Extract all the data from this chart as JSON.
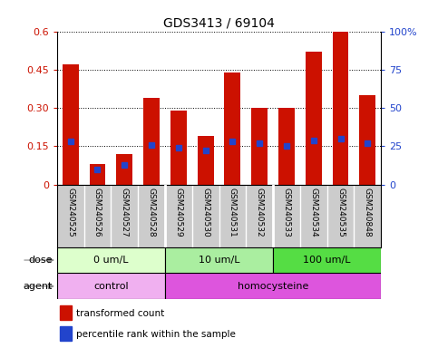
{
  "title": "GDS3413 / 69104",
  "samples": [
    "GSM240525",
    "GSM240526",
    "GSM240527",
    "GSM240528",
    "GSM240529",
    "GSM240530",
    "GSM240531",
    "GSM240532",
    "GSM240533",
    "GSM240534",
    "GSM240535",
    "GSM240848"
  ],
  "red_values": [
    0.47,
    0.08,
    0.12,
    0.34,
    0.29,
    0.19,
    0.44,
    0.3,
    0.3,
    0.52,
    0.6,
    0.35
  ],
  "blue_percentiles": [
    28,
    10,
    13,
    26,
    24,
    22,
    28,
    27,
    25,
    29,
    30,
    27
  ],
  "ylim_left": [
    0,
    0.6
  ],
  "ylim_right": [
    0,
    100
  ],
  "yticks_left": [
    0,
    0.15,
    0.3,
    0.45,
    0.6
  ],
  "ytick_labels_left": [
    "0",
    "0.15",
    "0.30",
    "0.45",
    "0.6"
  ],
  "yticks_right": [
    0,
    25,
    50,
    75,
    100
  ],
  "ytick_labels_right": [
    "0",
    "25",
    "50",
    "75",
    "100%"
  ],
  "bar_color": "#cc1100",
  "marker_color": "#2244cc",
  "names_bg_color": "#cccccc",
  "dose_colors": [
    "#ddffcc",
    "#aaeea0",
    "#55dd44"
  ],
  "agent_colors": [
    "#f0b0f0",
    "#dd55dd"
  ],
  "dose_groups": [
    {
      "label": "0 um/L",
      "start": 0,
      "end": 4
    },
    {
      "label": "10 um/L",
      "start": 4,
      "end": 8
    },
    {
      "label": "100 um/L",
      "start": 8,
      "end": 12
    }
  ],
  "agent_groups": [
    {
      "label": "control",
      "start": 0,
      "end": 4
    },
    {
      "label": "homocysteine",
      "start": 4,
      "end": 12
    }
  ],
  "legend_red_label": "transformed count",
  "legend_blue_label": "percentile rank within the sample",
  "dose_label": "dose",
  "agent_label": "agent",
  "bar_width": 0.6,
  "fig_width": 4.83,
  "fig_height": 3.84,
  "dpi": 100
}
